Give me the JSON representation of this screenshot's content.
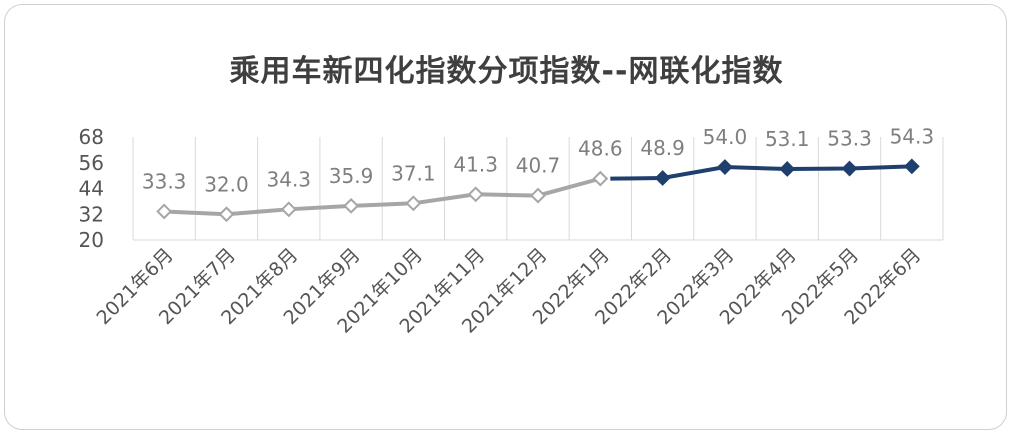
{
  "chart_data": {
    "type": "line",
    "title": "乘用车新四化指数分项指数--网联化指数",
    "categories": [
      "2021年6月",
      "2021年7月",
      "2021年8月",
      "2021年9月",
      "2021年10月",
      "2021年11月",
      "2021年12月",
      "2022年1月",
      "2022年2月",
      "2022年3月",
      "2022年4月",
      "2022年5月",
      "2022年6月"
    ],
    "values": [
      33.3,
      32.0,
      34.3,
      35.9,
      37.1,
      41.3,
      40.7,
      48.6,
      48.9,
      54.0,
      53.1,
      53.3,
      54.3
    ],
    "labels": [
      "33.3",
      "32.0",
      "34.3",
      "35.9",
      "37.1",
      "41.3",
      "40.7",
      "48.6",
      "48.9",
      "54.0",
      "53.1",
      "53.3",
      "54.3"
    ],
    "yticks": [
      "20",
      "32",
      "44",
      "56",
      "68"
    ],
    "ylim": [
      20,
      68
    ],
    "grid": true,
    "colors": {
      "past": "#a6a6a6",
      "current": "#1f3f6e",
      "grid": "#d9d9d9"
    }
  }
}
